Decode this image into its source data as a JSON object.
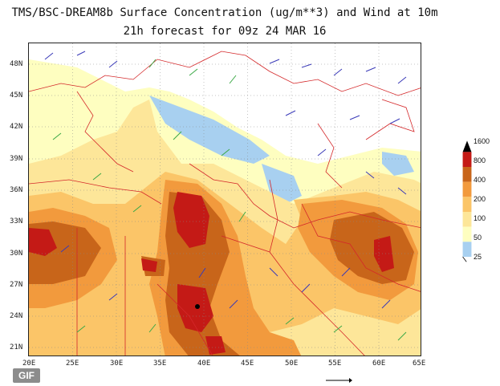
{
  "title": {
    "line1": "TMS/BSC-DREAM8b Surface Concentration (ug/m**3) and Wind at 10m",
    "line2": "21h forecast for 09z 24 MAR 16"
  },
  "axes": {
    "lat_labels": [
      "48N",
      "45N",
      "42N",
      "39N",
      "36N",
      "33N",
      "30N",
      "27N",
      "24N",
      "21N"
    ],
    "lon_labels": [
      "20E",
      "25E",
      "30E",
      "35E",
      "40E",
      "45E",
      "50E",
      "55E",
      "60E",
      "65E"
    ]
  },
  "legend": {
    "levels": [
      "1600",
      "800",
      "400",
      "200",
      "100",
      "50",
      "25"
    ],
    "colors": {
      "c25": "#a8d0f0",
      "c50": "#fefec0",
      "c100": "#fde699",
      "c200": "#fbc568",
      "c400": "#f29a3d",
      "c800": "#c8651a",
      "c1600": "#c41a16",
      "top": "#000000"
    }
  },
  "badge": {
    "label": "GIF"
  },
  "colors": {
    "border": "#d4282a",
    "wind_arrow_green": "#3aa845",
    "wind_arrow_blue": "#3a3ab8",
    "grid": "#888888"
  }
}
